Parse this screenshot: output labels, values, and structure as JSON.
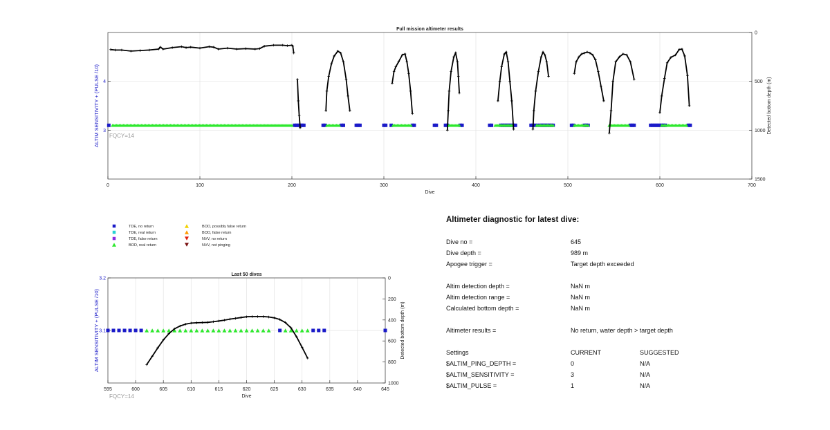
{
  "chart_data": [
    {
      "type": "line",
      "title": "Full mission altimeter results",
      "xlabel": "Dive",
      "ylabel": "ALTIM SENSITIVITY + (PULSE /10)",
      "y2label": "Detected bottom depth (m)",
      "xlim": [
        0,
        700
      ],
      "xticks": [
        0,
        100,
        200,
        300,
        400,
        500,
        600,
        700
      ],
      "ylim": [
        2,
        5
      ],
      "yticks": [
        3,
        4
      ],
      "y2lim": [
        0,
        1500
      ],
      "y2ticks": [
        0,
        500,
        1000,
        1500
      ],
      "grid": true,
      "fqcy_label": "FQCY=14",
      "setting_value": 3.1,
      "series": [
        {
          "marker": "square",
          "color": "#1a1ac8",
          "x": [
            1,
            203,
            205,
            207,
            209,
            211,
            213,
            234,
            236,
            254,
            256,
            270,
            272,
            274,
            300,
            302,
            308,
            331,
            333,
            355,
            357,
            367,
            369,
            383,
            385,
            415,
            417,
            427,
            429,
            431,
            433,
            435,
            437,
            439,
            441,
            443,
            460,
            462,
            464,
            467,
            470,
            472,
            474,
            476,
            478,
            480,
            482,
            484,
            504,
            506,
            518,
            520,
            522,
            568,
            570,
            572,
            590,
            592,
            594,
            596,
            598,
            600,
            602,
            604,
            606,
            631,
            633
          ],
          "y": [
            3.1,
            3.1,
            3.1,
            3.1,
            3.1,
            3.1,
            3.1,
            3.1,
            3.1,
            3.1,
            3.1,
            3.1,
            3.1,
            3.1,
            3.1,
            3.1,
            3.1,
            3.1,
            3.1,
            3.1,
            3.1,
            3.1,
            3.1,
            3.1,
            3.1,
            3.1,
            3.1,
            3.1,
            3.1,
            3.1,
            3.1,
            3.1,
            3.1,
            3.1,
            3.1,
            3.1,
            3.1,
            3.1,
            3.1,
            3.1,
            3.1,
            3.1,
            3.1,
            3.1,
            3.1,
            3.1,
            3.1,
            3.1,
            3.1,
            3.1,
            3.1,
            3.1,
            3.1,
            3.1,
            3.1,
            3.1,
            3.1,
            3.1,
            3.1,
            3.1,
            3.1,
            3.1,
            3.1,
            3.1,
            3.1,
            3.1,
            3.1
          ]
        },
        {
          "marker": "triangle",
          "color": "#2ee82e",
          "x_range": [
            [
              5,
              200
            ],
            [
              238,
              252
            ],
            [
              310,
              330
            ],
            [
              370,
              382
            ],
            [
              421,
              439
            ],
            [
              466,
              484
            ],
            [
              507,
              523
            ],
            [
              545,
              567
            ],
            [
              602,
              630
            ]
          ],
          "y": 3.1
        },
        {
          "marker": "line",
          "color": "#000000",
          "segments": [
            {
              "x": [
                3,
                8,
                15,
                25,
                35,
                45,
                55,
                57,
                60,
                70,
                80,
                85,
                90,
                100,
                110,
                115,
                120,
                130,
                140,
                150,
                160,
                165,
                170,
                180,
                190,
                195,
                200,
                201,
                202
              ],
              "y": [
                175,
                180,
                180,
                190,
                185,
                180,
                170,
                150,
                170,
                155,
                145,
                155,
                150,
                160,
                145,
                150,
                170,
                160,
                170,
                165,
                170,
                165,
                140,
                130,
                130,
                135,
                130,
                140,
                210
              ]
            },
            {
              "x": [
                206,
                207,
                208,
                209
              ],
              "y": [
                480,
                700,
                850,
                975
              ]
            },
            {
              "x": [
                237,
                238,
                240,
                243,
                246,
                250,
                253,
                256,
                259,
                261,
                263
              ],
              "y": [
                800,
                600,
                450,
                320,
                240,
                190,
                210,
                300,
                480,
                650,
                800
              ]
            },
            {
              "x": [
                309,
                311,
                313,
                316,
                320,
                323,
                325,
                327,
                329,
                331
              ],
              "y": [
                520,
                400,
                350,
                300,
                230,
                220,
                300,
                420,
                600,
                830
              ]
            },
            {
              "x": [
                369,
                370,
                371,
                373,
                376,
                378,
                380,
                381,
                382
              ],
              "y": [
                1000,
                800,
                600,
                400,
                250,
                210,
                300,
                450,
                620
              ]
            },
            {
              "x": [
                424,
                426,
                428,
                431,
                433,
                435,
                437,
                439,
                441
              ],
              "y": [
                700,
                500,
                350,
                220,
                200,
                300,
                500,
                700,
                990
              ]
            },
            {
              "x": [
                462,
                463,
                465,
                468,
                471,
                473,
                475,
                477,
                479
              ],
              "y": [
                990,
                800,
                600,
                400,
                250,
                200,
                230,
                300,
                450
              ]
            },
            {
              "x": [
                507,
                509,
                512,
                515,
                518,
                521,
                524,
                527,
                530,
                533,
                536,
                539
              ],
              "y": [
                420,
                300,
                250,
                220,
                210,
                200,
                210,
                230,
                280,
                400,
                550,
                700
              ]
            },
            {
              "x": [
                545,
                547,
                549,
                552,
                556,
                560,
                564,
                568,
                572
              ],
              "y": [
                1030,
                800,
                500,
                300,
                250,
                220,
                230,
                300,
                480
              ]
            },
            {
              "x": [
                600,
                602,
                605,
                608,
                612,
                617,
                621,
                624,
                627,
                630,
                632
              ],
              "y": [
                820,
                650,
                470,
                310,
                255,
                230,
                175,
                170,
                240,
                440,
                750
              ]
            }
          ]
        }
      ]
    },
    {
      "type": "line",
      "title": "Last 50 dives",
      "xlabel": "Dive",
      "ylabel": "ALTIM SENSITIVITY + (PULSE /10)",
      "y2label": "Detected bottom depth (m)",
      "xlim": [
        595,
        645
      ],
      "xticks": [
        595,
        600,
        605,
        610,
        615,
        620,
        625,
        630,
        635,
        640,
        645
      ],
      "ylim": [
        3.0,
        3.2
      ],
      "yticks": [
        3.1,
        3.2
      ],
      "y2lim": [
        0,
        1000
      ],
      "y2ticks": [
        0,
        200,
        400,
        600,
        800,
        1000
      ],
      "grid": true,
      "fqcy_label": "FQCY=14",
      "series": [
        {
          "marker": "square",
          "color": "#1a1ac8",
          "x": [
            595,
            596,
            597,
            598,
            599,
            600,
            601,
            626,
            632,
            633,
            634,
            645
          ],
          "y": [
            3.1,
            3.1,
            3.1,
            3.1,
            3.1,
            3.1,
            3.1,
            3.1,
            3.1,
            3.1,
            3.1,
            3.1
          ]
        },
        {
          "marker": "triangle",
          "color": "#2ee82e",
          "x": [
            602,
            603,
            604,
            605,
            606,
            607,
            608,
            609,
            610,
            611,
            612,
            613,
            614,
            615,
            616,
            617,
            618,
            619,
            620,
            621,
            622,
            623,
            624,
            627,
            628,
            629,
            630,
            631
          ],
          "y": [
            3.1,
            3.1,
            3.1,
            3.1,
            3.1,
            3.1,
            3.1,
            3.1,
            3.1,
            3.1,
            3.1,
            3.1,
            3.1,
            3.1,
            3.1,
            3.1,
            3.1,
            3.1,
            3.1,
            3.1,
            3.1,
            3.1,
            3.1,
            3.1,
            3.1,
            3.1,
            3.1,
            3.1
          ]
        },
        {
          "marker": "line",
          "color": "#000000",
          "x": [
            602,
            603,
            604,
            605,
            606,
            607,
            608,
            609,
            610,
            611,
            612,
            613,
            614,
            615,
            616,
            617,
            618,
            619,
            620,
            621,
            622,
            623,
            624,
            625,
            626,
            627,
            628,
            629,
            630,
            631
          ],
          "y": [
            825,
            745,
            665,
            590,
            530,
            485,
            458,
            440,
            430,
            427,
            425,
            423,
            417,
            410,
            402,
            392,
            385,
            377,
            370,
            368,
            368,
            368,
            372,
            380,
            396,
            425,
            475,
            560,
            660,
            763
          ]
        }
      ]
    }
  ],
  "legend": {
    "items": [
      {
        "label": "TDE, no return",
        "marker": "square",
        "color": "#1a1ac8"
      },
      {
        "label": "TDE, real return",
        "marker": "square",
        "color": "#28d2d2"
      },
      {
        "label": "TDE, false return",
        "marker": "square",
        "color": "#8a2be2"
      },
      {
        "label": "BOD, real return",
        "marker": "triangle-up",
        "color": "#2ee82e"
      },
      {
        "label": "BOD, possibly false return",
        "marker": "triangle-up",
        "color": "#f2d200"
      },
      {
        "label": "BOD, false return",
        "marker": "triangle-up",
        "color": "#ff9a00"
      },
      {
        "label": "NVV, no return",
        "marker": "triangle-down",
        "color": "#e02010"
      },
      {
        "label": "NVV, not pinging",
        "marker": "triangle-down",
        "color": "#7a1010"
      }
    ]
  },
  "diagnostic": {
    "title": "Altimeter diagnostic for latest dive:",
    "rows": [
      {
        "label": "Dive no =",
        "value": "645"
      },
      {
        "label": "Dive depth =",
        "value": "989 m"
      },
      {
        "label": "Apogee trigger =",
        "value": "Target depth exceeded"
      },
      {
        "label": "Altim detection depth =",
        "value": "NaN m"
      },
      {
        "label": "Altim detection range =",
        "value": "NaN m"
      },
      {
        "label": "Calculated bottom depth =",
        "value": "NaN m"
      },
      {
        "label": "Altimeter results =",
        "value": "No return, water depth > target depth"
      }
    ],
    "settings_header": {
      "label": "Settings",
      "current": "CURRENT",
      "suggested": "SUGGESTED"
    },
    "settings": [
      {
        "label": "$ALTIM_PING_DEPTH =",
        "current": "0",
        "suggested": "N/A"
      },
      {
        "label": "$ALTIM_SENSITIVITY =",
        "current": "3",
        "suggested": "N/A"
      },
      {
        "label": "$ALTIM_PULSE =",
        "current": "1",
        "suggested": "N/A"
      }
    ]
  }
}
